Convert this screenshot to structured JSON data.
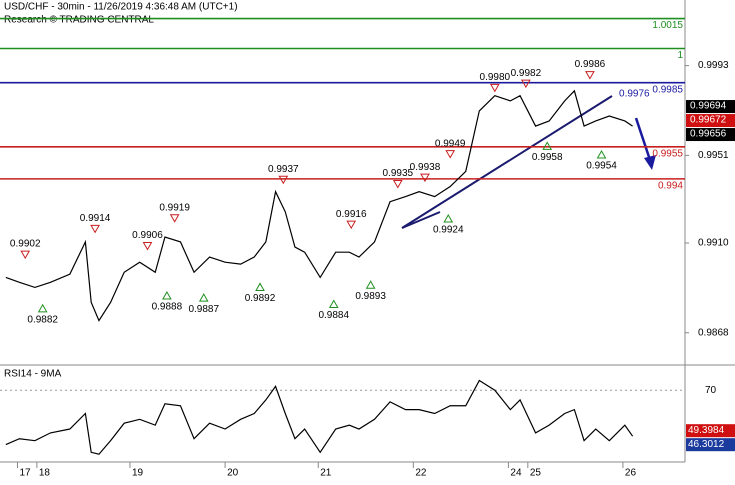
{
  "chart_data": {
    "type": "line",
    "title": "USD/CHF - 30min - 11/26/2019 4:36:48 AM (UTC+1)",
    "subtitle": "Research © TRADING CENTRAL",
    "x": [
      -16,
      -9,
      -1,
      7,
      17,
      25,
      28,
      32,
      38,
      45,
      53,
      61,
      66,
      74,
      81,
      89,
      97,
      105,
      112,
      118,
      123,
      128,
      133,
      138,
      146,
      154,
      161,
      166,
      174,
      182,
      190,
      197,
      205,
      213,
      221,
      228,
      236,
      244,
      249,
      257,
      264,
      272,
      277,
      282,
      288,
      295,
      303,
      307
    ],
    "series": [
      {
        "name": "USD/CHF",
        "color": "#000000",
        "values": [
          0.98939,
          0.98916,
          0.98892,
          0.98916,
          0.98954,
          0.99105,
          0.98822,
          0.98737,
          0.98822,
          0.98963,
          0.9901,
          0.98963,
          0.99128,
          0.99105,
          0.98963,
          0.99034,
          0.9901,
          0.99001,
          0.99034,
          0.99105,
          0.9934,
          0.99246,
          0.99081,
          0.99057,
          0.98939,
          0.99057,
          0.99057,
          0.99034,
          0.99105,
          0.99293,
          0.99317,
          0.9934,
          0.99317,
          0.99364,
          0.99435,
          0.99718,
          0.99789,
          0.99765,
          0.99789,
          0.99647,
          0.99671,
          0.99765,
          0.99812,
          0.99647,
          0.99671,
          0.99694,
          0.99671,
          0.99647
        ]
      }
    ],
    "xlim": [
      -19,
      334
    ],
    "xticks": [
      {
        "value": -10,
        "label": "17"
      },
      {
        "value": 0,
        "label": "18"
      },
      {
        "value": 48,
        "label": "19"
      },
      {
        "value": 97,
        "label": "20"
      },
      {
        "value": 145,
        "label": "21"
      },
      {
        "value": 194,
        "label": "22"
      },
      {
        "value": 243,
        "label": "24"
      },
      {
        "value": 253,
        "label": "25"
      },
      {
        "value": 302,
        "label": "26"
      }
    ],
    "ylim": [
      0.98529,
      1.00237
    ],
    "yticks": [
      0.9993,
      0.9951,
      {
        "value": 0.991,
        "label": "0.9910"
      },
      0.9868
    ],
    "levels": [
      {
        "value": 1.0015,
        "label": "1.0015",
        "color": "#1f8f1f"
      },
      {
        "value": 1.0001,
        "label": "1",
        "color": "#1f8f1f"
      },
      {
        "value": 0.9985,
        "label": "0.9985",
        "color": "#1a1a9e"
      },
      {
        "value": 0.9955,
        "label": "0.9955",
        "color": "#c81e1e"
      },
      {
        "value": 0.994,
        "label": "0.994",
        "color": "#c81e1e"
      }
    ],
    "callouts": [
      {
        "x": 300,
        "value": 0.9976,
        "label": "0.9976"
      }
    ],
    "annotations": [
      {
        "x": -6,
        "value": 0.9902,
        "label": "0.9902",
        "kind": "high"
      },
      {
        "x": 3,
        "value": 0.9882,
        "label": "0.9882",
        "kind": "low"
      },
      {
        "x": 30,
        "value": 0.9914,
        "label": "0.9914",
        "kind": "high"
      },
      {
        "x": 57,
        "value": 0.9906,
        "label": "0.9906",
        "kind": "high"
      },
      {
        "x": 71,
        "value": 0.9919,
        "label": "0.9919",
        "kind": "high"
      },
      {
        "x": 67,
        "value": 0.9888,
        "label": "0.9888",
        "kind": "low"
      },
      {
        "x": 86,
        "value": 0.9887,
        "label": "0.9887",
        "kind": "low"
      },
      {
        "x": 127,
        "value": 0.9937,
        "label": "0.9937",
        "kind": "high"
      },
      {
        "x": 115,
        "value": 0.9892,
        "label": "0.9892",
        "kind": "low"
      },
      {
        "x": 162,
        "value": 0.9916,
        "label": "0.9916",
        "kind": "high"
      },
      {
        "x": 153,
        "value": 0.9884,
        "label": "0.9884",
        "kind": "low"
      },
      {
        "x": 172,
        "value": 0.9893,
        "label": "0.9893",
        "kind": "low"
      },
      {
        "x": 186,
        "value": 0.9935,
        "label": "0.9935",
        "kind": "high"
      },
      {
        "x": 200,
        "value": 0.9938,
        "label": "0.9938",
        "kind": "high"
      },
      {
        "x": 213,
        "value": 0.9949,
        "label": "0.9949",
        "kind": "high"
      },
      {
        "x": 212,
        "value": 0.9924,
        "label": "0.9924",
        "kind": "low"
      },
      {
        "x": 236,
        "value": 0.998,
        "label": "0.9980",
        "kind": "high"
      },
      {
        "x": 252,
        "value": 0.9982,
        "label": "0.9982",
        "kind": "high"
      },
      {
        "x": 285,
        "value": 0.9986,
        "label": "0.9986",
        "kind": "high"
      },
      {
        "x": 263,
        "value": 0.9958,
        "label": "0.9958",
        "kind": "low"
      },
      {
        "x": 291,
        "value": 0.9954,
        "label": "0.9954",
        "kind": "low"
      }
    ],
    "price_tags": [
      {
        "value": 0.99694,
        "color": "#000000"
      },
      {
        "value": 0.99672,
        "color": "#d01010"
      },
      {
        "value": 0.99656,
        "color": "#000000"
      }
    ],
    "rsi": {
      "title": "RSI14 - 9MA",
      "color": "#000000",
      "values": [
        42,
        45,
        44,
        48,
        50,
        58,
        38,
        37,
        44,
        53,
        55,
        52,
        63,
        62,
        45,
        53,
        50,
        55,
        58,
        65,
        72,
        58,
        45,
        50,
        38,
        50,
        52,
        50,
        55,
        64,
        60,
        60,
        58,
        62,
        62,
        75,
        70,
        60,
        65,
        48,
        52,
        58,
        60,
        44,
        50,
        44,
        52,
        46.3012
      ],
      "ylim": [
        33,
        83
      ],
      "yticks": [
        70
      ],
      "grid": true,
      "tags": [
        {
          "value": 49.3984,
          "color": "#d01010"
        },
        {
          "value": 46.3012,
          "color": "#1a3a9e"
        }
      ]
    }
  }
}
